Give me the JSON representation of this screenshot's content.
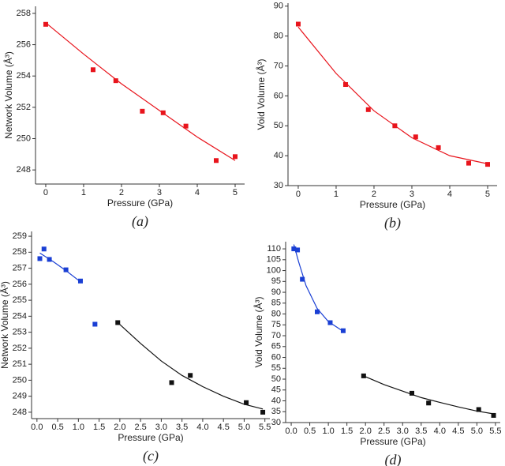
{
  "chart_data": [
    {
      "type": "scatter",
      "xlabel": "Pressure (GPa)",
      "ylabel": "Network Volume (Å³)",
      "caption": "(a)",
      "xlim": [
        -0.27,
        5.25
      ],
      "ylim": [
        247.1,
        258.45
      ],
      "xticks": [
        0,
        1,
        2,
        3,
        4,
        5
      ],
      "yticks": [
        248,
        250,
        252,
        254,
        256,
        258
      ],
      "series": [
        {
          "color": "#e8141c",
          "x": [
            0,
            1.25,
            1.85,
            2.55,
            3.1,
            3.7,
            4.5,
            5
          ],
          "values": [
            257.3,
            254.4,
            253.7,
            251.75,
            251.65,
            250.8,
            248.6,
            248.85
          ],
          "fit_x": [
            0,
            1,
            2,
            3,
            4,
            5
          ],
          "fit_values": [
            257.4,
            255.4,
            253.5,
            251.8,
            250.1,
            248.6
          ]
        }
      ]
    },
    {
      "type": "scatter",
      "xlabel": "Pressure (GPa)",
      "ylabel": "Void Volume (Å³)",
      "caption": "(b)",
      "xlim": [
        -0.27,
        5.25
      ],
      "ylim": [
        30,
        91
      ],
      "xticks": [
        0,
        1,
        2,
        3,
        4,
        5
      ],
      "yticks": [
        30,
        40,
        50,
        60,
        70,
        80,
        90
      ],
      "series": [
        {
          "color": "#e8141c",
          "x": [
            0,
            1.25,
            1.85,
            2.55,
            3.1,
            3.7,
            4.5,
            5
          ],
          "values": [
            84,
            63.8,
            55.4,
            50,
            46.3,
            42.7,
            37.5,
            37.1
          ],
          "fit_x": [
            0,
            1,
            2,
            3,
            4,
            5
          ],
          "fit_values": [
            83,
            67.5,
            55,
            46,
            40,
            37.3
          ]
        }
      ]
    },
    {
      "type": "scatter",
      "xlabel": "Pressure (GPa)",
      "ylabel": "Network Volume (Å³)",
      "caption": "(c)",
      "xlim": [
        -0.13,
        5.62
      ],
      "ylim": [
        247.6,
        259.3
      ],
      "xticks": [
        {
          "value": 0,
          "label": "0.0"
        },
        0.5,
        {
          "value": 1,
          "label": "1.0"
        },
        1.5,
        {
          "value": 2,
          "label": "2.0"
        },
        2.5,
        {
          "value": 3,
          "label": "3.0"
        },
        3.5,
        {
          "value": 4,
          "label": "4.0"
        },
        4.5,
        {
          "value": 5,
          "label": "5.0"
        },
        5.5
      ],
      "yticks": [
        248,
        249,
        250,
        251,
        252,
        253,
        254,
        255,
        256,
        257,
        258,
        259
      ],
      "series": [
        {
          "color": "#1a3fd4",
          "x": [
            0.07,
            0.17,
            0.3,
            0.7,
            1.05,
            1.4
          ],
          "values": [
            257.6,
            258.2,
            257.55,
            256.9,
            256.2,
            253.5
          ],
          "fit_x": [
            0.07,
            0.4,
            0.7,
            1.05
          ],
          "fit_values": [
            257.95,
            257.4,
            256.85,
            256.15
          ]
        },
        {
          "color": "#111111",
          "x": [
            1.95,
            3.25,
            3.7,
            5.05,
            5.45
          ],
          "values": [
            253.6,
            249.85,
            250.3,
            248.6,
            248
          ],
          "fit_x": [
            1.95,
            2.5,
            3,
            3.5,
            4,
            4.5,
            5,
            5.45
          ],
          "fit_values": [
            253.6,
            252.3,
            251.2,
            250.3,
            249.6,
            249.0,
            248.5,
            248.2
          ]
        }
      ]
    },
    {
      "type": "scatter",
      "xlabel": "Pressure (GPa)",
      "ylabel": "Void Volume (Å³)",
      "caption": "(d)",
      "xlim": [
        -0.15,
        5.63
      ],
      "ylim": [
        30,
        113.3
      ],
      "xticks": [
        {
          "value": 0,
          "label": "0.0"
        },
        0.5,
        {
          "value": 1,
          "label": "1.0"
        },
        1.5,
        {
          "value": 2,
          "label": "2.0"
        },
        2.5,
        {
          "value": 3,
          "label": "3.0"
        },
        3.5,
        {
          "value": 4,
          "label": "4.0"
        },
        4.5,
        {
          "value": 5,
          "label": "5.0"
        },
        5.5
      ],
      "yticks": [
        30,
        35,
        40,
        45,
        50,
        55,
        60,
        65,
        70,
        75,
        80,
        85,
        90,
        95,
        100,
        105,
        110
      ],
      "series": [
        {
          "color": "#1a3fd4",
          "x": [
            0.07,
            0.17,
            0.3,
            0.7,
            1.05,
            1.4
          ],
          "values": [
            110,
            109.5,
            96,
            81,
            76,
            72.3
          ],
          "fit_x": [
            0.07,
            0.2,
            0.4,
            0.7,
            1.0,
            1.4
          ],
          "fit_values": [
            112,
            104,
            93,
            82.5,
            76.5,
            72
          ]
        },
        {
          "color": "#111111",
          "x": [
            1.95,
            3.25,
            3.7,
            5.05,
            5.45
          ],
          "values": [
            51.5,
            43.5,
            39,
            36,
            33.3
          ],
          "fit_x": [
            1.95,
            2.5,
            3,
            3.5,
            4,
            4.5,
            5,
            5.45
          ],
          "fit_values": [
            51.5,
            47.5,
            44.5,
            41.5,
            39.3,
            37.2,
            35.3,
            34
          ]
        }
      ]
    }
  ]
}
